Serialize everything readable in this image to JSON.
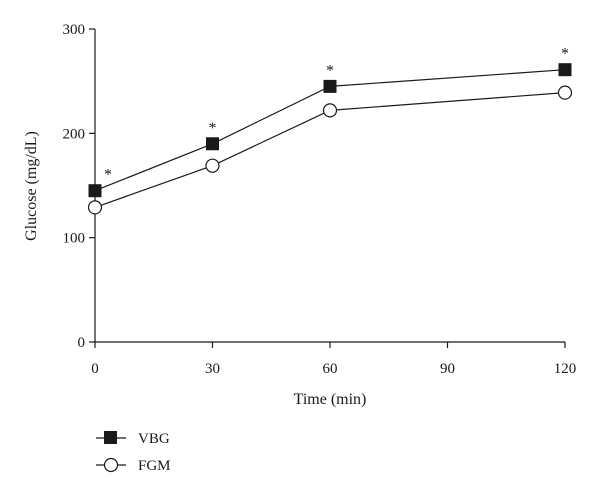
{
  "chart_data": {
    "type": "line",
    "xlabel": "Time (min)",
    "ylabel": "Glucose (mg/dL)",
    "xlim": [
      0,
      120
    ],
    "ylim": [
      0,
      300
    ],
    "x_ticks": [
      0,
      30,
      60,
      90,
      120
    ],
    "x_tick_labels": [
      "0",
      "30",
      "60",
      "90",
      "120"
    ],
    "y_ticks": [
      0,
      100,
      200,
      300
    ],
    "y_tick_labels": [
      "0",
      "100",
      "200",
      "300"
    ],
    "grid": false,
    "legend_position": "bottom-left",
    "series": [
      {
        "name": "VBG",
        "marker": "filled-square",
        "x": [
          0,
          30,
          60,
          120
        ],
        "y": [
          145,
          190,
          245,
          261
        ],
        "annotations": [
          "*",
          "*",
          "*",
          "*"
        ]
      },
      {
        "name": "FGM",
        "marker": "open-circle",
        "x": [
          0,
          30,
          60,
          120
        ],
        "y": [
          129,
          169,
          222,
          239
        ]
      }
    ]
  },
  "colors": {
    "ink": "#1a1a1a",
    "background": "#ffffff"
  }
}
